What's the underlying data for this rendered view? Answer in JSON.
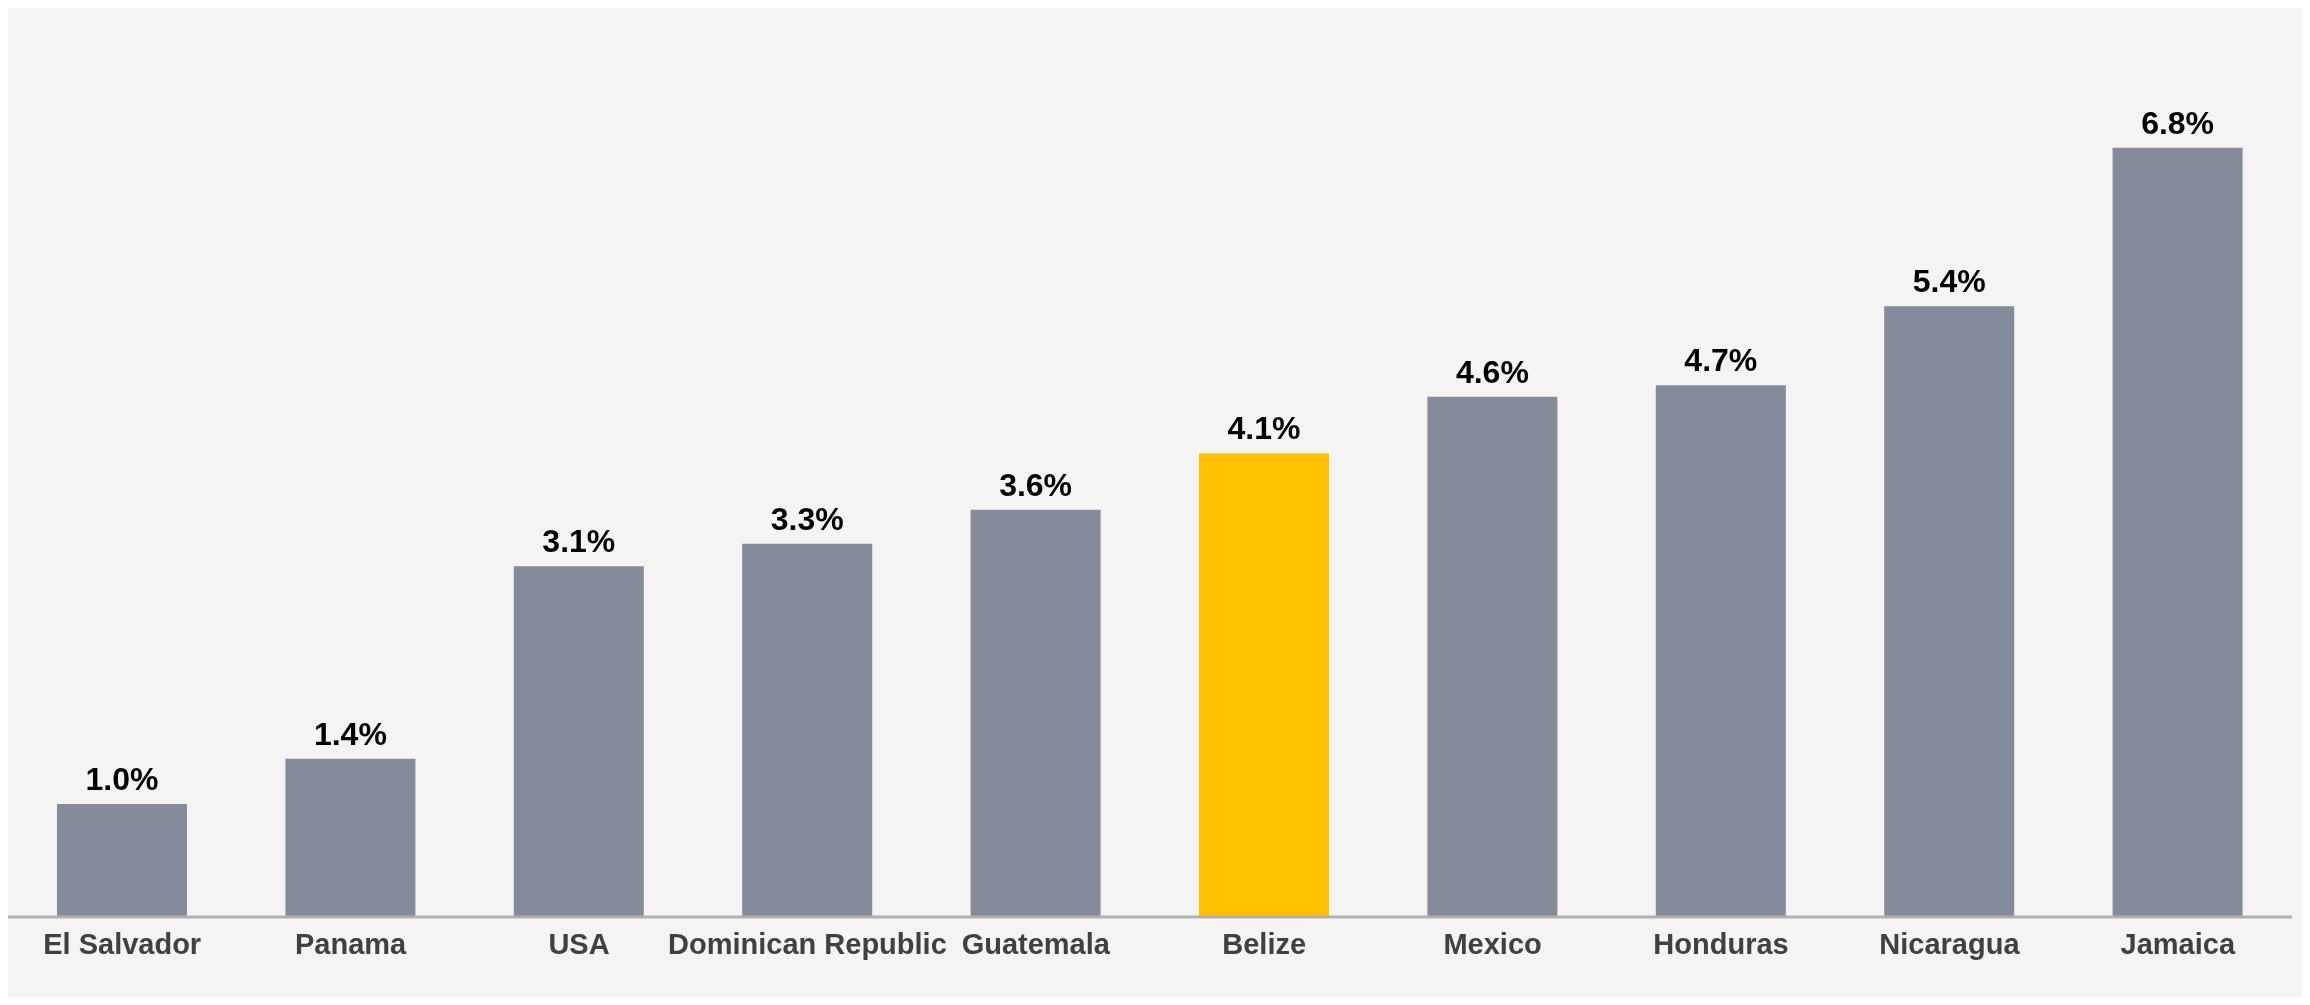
{
  "chart_data": {
    "type": "bar",
    "categories": [
      "El Salvador",
      "Panama",
      "USA",
      "Dominican Republic",
      "Guatemala",
      "Belize",
      "Mexico",
      "Honduras",
      "Nicaragua",
      "Jamaica"
    ],
    "values": [
      1.0,
      1.4,
      3.1,
      3.3,
      3.6,
      4.1,
      4.6,
      4.7,
      5.4,
      6.8
    ],
    "colors": [
      "#868b9b",
      "#868b9b",
      "#868b9b",
      "#868b9b",
      "#868b9b",
      "#ffc000",
      "#868b9b",
      "#868b9b",
      "#868b9b",
      "#868b9b"
    ],
    "value_labels": [
      "1.0%",
      "1.4%",
      "3.1%",
      "3.3%",
      "3.6%",
      "4.1%",
      "4.6%",
      "4.7%",
      "5.4%",
      "6.8%"
    ],
    "tick_labels": "x"
  }
}
